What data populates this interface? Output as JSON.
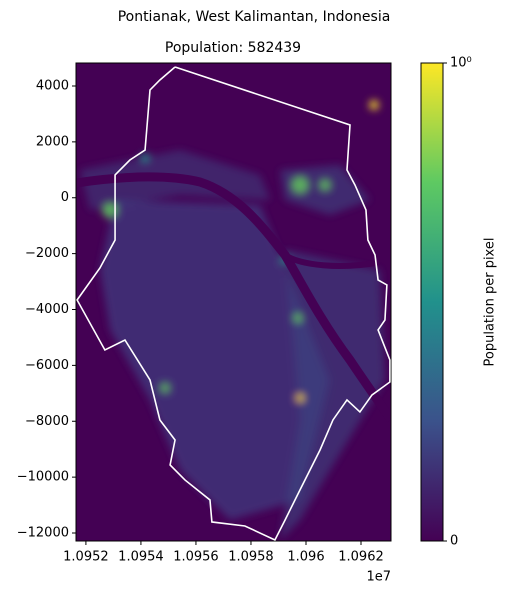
{
  "chart_data": {
    "type": "heatmap",
    "title": "Pontianak, West Kalimantan, Indonesia",
    "subtitle": "Population: 582439",
    "xlim": [
      1.095164,
      1.096309
    ],
    "xticks": [
      1.0952,
      1.0954,
      1.0956,
      1.0958,
      1.096,
      1.0962
    ],
    "x_offset_label": "1e7",
    "ylim": [
      -12286,
      4823
    ],
    "yticks": [
      {
        "value": -12000,
        "label": "−12000"
      },
      {
        "value": -10000,
        "label": "−10000"
      },
      {
        "value": -8000,
        "label": "−8000"
      },
      {
        "value": -6000,
        "label": "−6000"
      },
      {
        "value": -4000,
        "label": "−4000"
      },
      {
        "value": -2000,
        "label": "−2000"
      },
      0,
      2000,
      4000
    ],
    "colorbar_label": "Population per pixel",
    "clim": [
      0,
      1
    ],
    "colorbar_ticks": [
      0,
      {
        "value": 1,
        "label": "10⁰"
      }
    ],
    "colormap": [
      "#440154",
      "#3b528b",
      "#21918c",
      "#5ec962",
      "#fde725"
    ],
    "boundary": {
      "color": "#ffffff",
      "x": [
        1.095524,
        1.09616,
        1.096149,
        1.096178,
        1.096218,
        1.096225,
        1.096251,
        1.096262,
        1.096294,
        1.096287,
        1.096262,
        1.096305,
        1.096305,
        1.09624,
        1.096196,
        1.096149,
        1.096098,
        1.096051,
        1.095978,
        1.095924,
        1.095887,
        1.095778,
        1.095658,
        1.095651,
        1.09556,
        1.095506,
        1.095524,
        1.095469,
        1.095433,
        1.095342,
        1.095269,
        1.095168,
        1.095251,
        1.095306,
        1.095306,
        1.09536,
        1.095415,
        1.095433,
        1.095469,
        1.095524
      ],
      "y": [
        4680,
        2604,
        993,
        457,
        -438,
        -1512,
        -2049,
        -2943,
        -3122,
        -4375,
        -4733,
        -5807,
        -6594,
        -7059,
        -7668,
        -7238,
        -7954,
        -9028,
        -10459,
        -11533,
        -12249,
        -11748,
        -11605,
        -10817,
        -10101,
        -9565,
        -8670,
        -7954,
        -6523,
        -5091,
        -5449,
        -3659,
        -2514,
        -1512,
        815,
        1351,
        1709,
        3857,
        4215,
        4680
      ]
    }
  }
}
